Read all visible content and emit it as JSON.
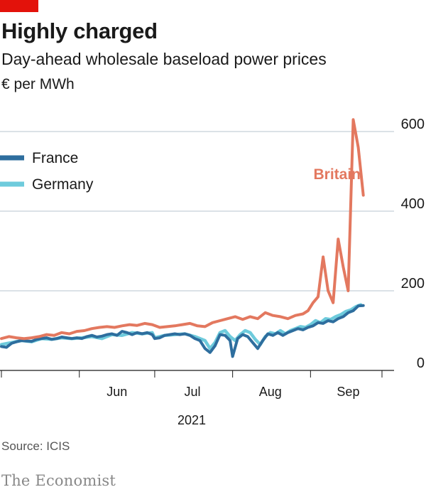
{
  "header": {
    "title": "Highly charged",
    "subtitle": "Day-ahead wholesale baseload power prices",
    "unit": "€ per MWh"
  },
  "footer": {
    "source": "Source: ICIS",
    "brand": "The Economist"
  },
  "colors": {
    "britain": "#e3785f",
    "france": "#2e6e9e",
    "germany": "#6ecbdc",
    "accent_tab": "#e3120b"
  },
  "chart_data": {
    "type": "line",
    "title": "Highly charged",
    "subtitle": "Day-ahead wholesale baseload power prices",
    "ylabel": "€ per MWh",
    "xlabel": "2021",
    "ylim": [
      0,
      600
    ],
    "yticks": [
      0,
      200,
      400,
      600
    ],
    "y_axis_position": "right",
    "x_tick_labels": [
      "Jun",
      "Jul",
      "Aug",
      "Sep"
    ],
    "x_year_label": "2021",
    "x_date_range": [
      "2021-05-01",
      "2021-09-30"
    ],
    "grid": true,
    "legend": {
      "placement": "top-left",
      "entries": [
        "France",
        "Germany"
      ]
    },
    "annotations": [
      {
        "text": "Britain",
        "series": "Britain"
      }
    ],
    "series": [
      {
        "name": "Germany",
        "color": "#6ecbdc",
        "points": [
          [
            "2021-05-01",
            65
          ],
          [
            "2021-05-05",
            70
          ],
          [
            "2021-05-09",
            75
          ],
          [
            "2021-05-13",
            72
          ],
          [
            "2021-05-17",
            80
          ],
          [
            "2021-05-21",
            78
          ],
          [
            "2021-05-25",
            82
          ],
          [
            "2021-05-29",
            80
          ],
          [
            "2021-06-02",
            82
          ],
          [
            "2021-06-06",
            85
          ],
          [
            "2021-06-10",
            80
          ],
          [
            "2021-06-14",
            90
          ],
          [
            "2021-06-18",
            88
          ],
          [
            "2021-06-22",
            95
          ],
          [
            "2021-06-26",
            92
          ],
          [
            "2021-06-30",
            95
          ],
          [
            "2021-07-01",
            82
          ],
          [
            "2021-07-05",
            88
          ],
          [
            "2021-07-09",
            90
          ],
          [
            "2021-07-13",
            92
          ],
          [
            "2021-07-17",
            85
          ],
          [
            "2021-07-21",
            75
          ],
          [
            "2021-07-23",
            55
          ],
          [
            "2021-07-25",
            70
          ],
          [
            "2021-07-27",
            95
          ],
          [
            "2021-07-29",
            100
          ],
          [
            "2021-07-31",
            85
          ],
          [
            "2021-08-02",
            75
          ],
          [
            "2021-08-04",
            90
          ],
          [
            "2021-08-06",
            100
          ],
          [
            "2021-08-08",
            95
          ],
          [
            "2021-08-10",
            78
          ],
          [
            "2021-08-12",
            65
          ],
          [
            "2021-08-14",
            85
          ],
          [
            "2021-08-16",
            95
          ],
          [
            "2021-08-18",
            92
          ],
          [
            "2021-08-20",
            100
          ],
          [
            "2021-08-22",
            92
          ],
          [
            "2021-08-24",
            100
          ],
          [
            "2021-08-26",
            105
          ],
          [
            "2021-08-28",
            110
          ],
          [
            "2021-08-30",
            108
          ],
          [
            "2021-09-01",
            115
          ],
          [
            "2021-09-03",
            125
          ],
          [
            "2021-09-05",
            120
          ],
          [
            "2021-09-07",
            130
          ],
          [
            "2021-09-09",
            128
          ],
          [
            "2021-09-11",
            135
          ],
          [
            "2021-09-13",
            140
          ],
          [
            "2021-09-15",
            148
          ],
          [
            "2021-09-17",
            152
          ],
          [
            "2021-09-19",
            160
          ],
          [
            "2021-09-21",
            165
          ]
        ]
      },
      {
        "name": "France",
        "color": "#2e6e9e",
        "points": [
          [
            "2021-05-01",
            60
          ],
          [
            "2021-05-03",
            58
          ],
          [
            "2021-05-05",
            68
          ],
          [
            "2021-05-07",
            72
          ],
          [
            "2021-05-09",
            75
          ],
          [
            "2021-05-11",
            74
          ],
          [
            "2021-05-13",
            73
          ],
          [
            "2021-05-15",
            78
          ],
          [
            "2021-05-17",
            80
          ],
          [
            "2021-05-19",
            82
          ],
          [
            "2021-05-21",
            78
          ],
          [
            "2021-05-23",
            80
          ],
          [
            "2021-05-25",
            84
          ],
          [
            "2021-05-27",
            82
          ],
          [
            "2021-05-29",
            80
          ],
          [
            "2021-05-31",
            82
          ],
          [
            "2021-06-02",
            80
          ],
          [
            "2021-06-04",
            85
          ],
          [
            "2021-06-06",
            88
          ],
          [
            "2021-06-08",
            84
          ],
          [
            "2021-06-10",
            86
          ],
          [
            "2021-06-12",
            90
          ],
          [
            "2021-06-14",
            92
          ],
          [
            "2021-06-16",
            88
          ],
          [
            "2021-06-18",
            98
          ],
          [
            "2021-06-20",
            95
          ],
          [
            "2021-06-22",
            90
          ],
          [
            "2021-06-24",
            95
          ],
          [
            "2021-06-26",
            92
          ],
          [
            "2021-06-28",
            95
          ],
          [
            "2021-06-30",
            90
          ],
          [
            "2021-07-01",
            80
          ],
          [
            "2021-07-03",
            82
          ],
          [
            "2021-07-05",
            88
          ],
          [
            "2021-07-07",
            90
          ],
          [
            "2021-07-09",
            92
          ],
          [
            "2021-07-11",
            90
          ],
          [
            "2021-07-13",
            92
          ],
          [
            "2021-07-15",
            88
          ],
          [
            "2021-07-17",
            80
          ],
          [
            "2021-07-19",
            75
          ],
          [
            "2021-07-21",
            55
          ],
          [
            "2021-07-23",
            45
          ],
          [
            "2021-07-25",
            62
          ],
          [
            "2021-07-27",
            90
          ],
          [
            "2021-07-29",
            88
          ],
          [
            "2021-07-31",
            75
          ],
          [
            "2021-08-01",
            35
          ],
          [
            "2021-08-03",
            80
          ],
          [
            "2021-08-05",
            90
          ],
          [
            "2021-08-07",
            85
          ],
          [
            "2021-08-09",
            70
          ],
          [
            "2021-08-11",
            55
          ],
          [
            "2021-08-13",
            75
          ],
          [
            "2021-08-15",
            92
          ],
          [
            "2021-08-17",
            88
          ],
          [
            "2021-08-19",
            95
          ],
          [
            "2021-08-21",
            88
          ],
          [
            "2021-08-23",
            95
          ],
          [
            "2021-08-25",
            100
          ],
          [
            "2021-08-27",
            105
          ],
          [
            "2021-08-29",
            102
          ],
          [
            "2021-08-31",
            108
          ],
          [
            "2021-09-02",
            112
          ],
          [
            "2021-09-04",
            120
          ],
          [
            "2021-09-06",
            118
          ],
          [
            "2021-09-08",
            125
          ],
          [
            "2021-09-10",
            122
          ],
          [
            "2021-09-12",
            130
          ],
          [
            "2021-09-14",
            135
          ],
          [
            "2021-09-16",
            145
          ],
          [
            "2021-09-18",
            150
          ],
          [
            "2021-09-20",
            162
          ],
          [
            "2021-09-22",
            163
          ]
        ]
      },
      {
        "name": "Britain",
        "color": "#e3785f",
        "points": [
          [
            "2021-05-01",
            80
          ],
          [
            "2021-05-04",
            85
          ],
          [
            "2021-05-07",
            82
          ],
          [
            "2021-05-10",
            80
          ],
          [
            "2021-05-13",
            82
          ],
          [
            "2021-05-16",
            85
          ],
          [
            "2021-05-19",
            90
          ],
          [
            "2021-05-22",
            88
          ],
          [
            "2021-05-25",
            95
          ],
          [
            "2021-05-28",
            92
          ],
          [
            "2021-05-31",
            98
          ],
          [
            "2021-06-03",
            100
          ],
          [
            "2021-06-06",
            105
          ],
          [
            "2021-06-09",
            108
          ],
          [
            "2021-06-12",
            110
          ],
          [
            "2021-06-15",
            108
          ],
          [
            "2021-06-18",
            112
          ],
          [
            "2021-06-21",
            115
          ],
          [
            "2021-06-24",
            113
          ],
          [
            "2021-06-27",
            118
          ],
          [
            "2021-06-30",
            115
          ],
          [
            "2021-07-03",
            108
          ],
          [
            "2021-07-06",
            110
          ],
          [
            "2021-07-09",
            112
          ],
          [
            "2021-07-12",
            115
          ],
          [
            "2021-07-15",
            118
          ],
          [
            "2021-07-18",
            112
          ],
          [
            "2021-07-21",
            110
          ],
          [
            "2021-07-24",
            120
          ],
          [
            "2021-07-27",
            125
          ],
          [
            "2021-07-30",
            130
          ],
          [
            "2021-08-02",
            135
          ],
          [
            "2021-08-05",
            128
          ],
          [
            "2021-08-08",
            135
          ],
          [
            "2021-08-11",
            130
          ],
          [
            "2021-08-14",
            145
          ],
          [
            "2021-08-17",
            138
          ],
          [
            "2021-08-20",
            135
          ],
          [
            "2021-08-23",
            130
          ],
          [
            "2021-08-26",
            138
          ],
          [
            "2021-08-29",
            142
          ],
          [
            "2021-08-31",
            150
          ],
          [
            "2021-09-02",
            170
          ],
          [
            "2021-09-04",
            185
          ],
          [
            "2021-09-06",
            285
          ],
          [
            "2021-09-08",
            200
          ],
          [
            "2021-09-10",
            170
          ],
          [
            "2021-09-12",
            330
          ],
          [
            "2021-09-14",
            260
          ],
          [
            "2021-09-16",
            200
          ],
          [
            "2021-09-18",
            630
          ],
          [
            "2021-09-20",
            560
          ],
          [
            "2021-09-22",
            440
          ]
        ]
      }
    ]
  }
}
